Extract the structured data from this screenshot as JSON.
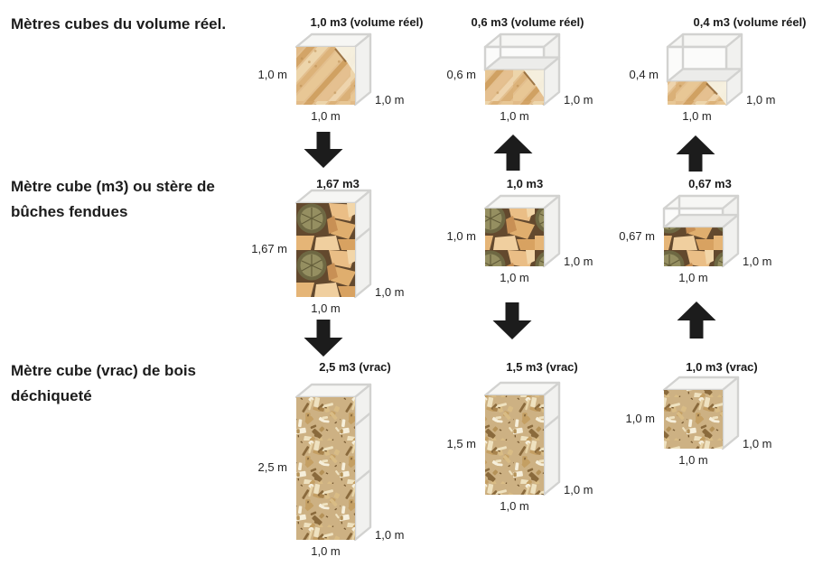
{
  "figure": {
    "background": "#ffffff"
  },
  "colors": {
    "text": "#1c1c1c",
    "arrow": "#1c1c1c",
    "wireframe": "#d2d2d0",
    "face_top": "#f6f6f4",
    "face_right": "#f1f1ef",
    "face_empty_front": "#fbfbfa",
    "face_fill_top": "#ececea",
    "grain_base": "#e3bf8e",
    "logs_background": "#63492e",
    "chips_background": "#cdb183"
  },
  "row_labels": [
    {
      "text": "Mètres cubes du volume réel."
    },
    {
      "text": "Mètre cube (m3) ou stère de\nbûches fendues"
    },
    {
      "text": "Mètre cube (vrac) de bois\ndéchiqueté"
    }
  ],
  "cells": [
    {
      "id": "volume-reel-10",
      "title": "1,0 m3 (volume réel)",
      "texture": "grain",
      "height_m": 1.0,
      "fill_m": 1.0,
      "left_label": "1,0 m",
      "right_label": "1,0 m",
      "bottom_label": "1,0 m"
    },
    {
      "id": "volume-reel-06",
      "title": "0,6 m3 (volume réel)",
      "texture": "grain",
      "height_m": 1.0,
      "fill_m": 0.6,
      "left_label": "0,6 m",
      "right_label": "1,0 m",
      "bottom_label": "1,0 m"
    },
    {
      "id": "volume-reel-04",
      "title": "0,4 m3 (volume réel)",
      "texture": "grain",
      "height_m": 1.0,
      "fill_m": 0.4,
      "left_label": "0,4 m",
      "right_label": "1,0 m",
      "bottom_label": "1,0 m"
    },
    {
      "id": "stere-167",
      "title": "1,67 m3",
      "texture": "logs",
      "height_m": 1.67,
      "fill_m": 1.67,
      "left_label": "1,67 m",
      "right_label": "1,0 m",
      "bottom_label": "1,0 m"
    },
    {
      "id": "stere-10",
      "title": "1,0 m3",
      "texture": "logs",
      "height_m": 1.0,
      "fill_m": 1.0,
      "left_label": "1,0 m",
      "right_label": "1,0 m",
      "bottom_label": "1,0 m"
    },
    {
      "id": "stere-067",
      "title": "0,67 m3",
      "texture": "logs",
      "height_m": 1.0,
      "fill_m": 0.67,
      "left_label": "0,67 m",
      "right_label": "1,0 m",
      "bottom_label": "1,0 m"
    },
    {
      "id": "vrac-25",
      "title": "2,5 m3 (vrac)",
      "texture": "chips",
      "height_m": 2.5,
      "fill_m": 2.5,
      "left_label": "2,5 m",
      "right_label": "1,0 m",
      "bottom_label": "1,0 m"
    },
    {
      "id": "vrac-15",
      "title": "1,5 m3 (vrac)",
      "texture": "chips",
      "height_m": 1.5,
      "fill_m": 1.5,
      "left_label": "1,5 m",
      "right_label": "1,0 m",
      "bottom_label": "1,0 m"
    },
    {
      "id": "vrac-10",
      "title": "1,0 m3 (vrac)",
      "texture": "chips",
      "height_m": 1.0,
      "fill_m": 1.0,
      "left_label": "1,0 m",
      "right_label": "1,0 m",
      "bottom_label": "1,0 m"
    }
  ],
  "arrows": [
    {
      "id": "arrow-reel10-to-stere167",
      "direction": "down"
    },
    {
      "id": "arrow-stere10-to-reel06",
      "direction": "up"
    },
    {
      "id": "arrow-stere067-to-reel04",
      "direction": "up"
    },
    {
      "id": "arrow-stere167-to-vrac25",
      "direction": "down"
    },
    {
      "id": "arrow-stere10-to-vrac15",
      "direction": "down"
    },
    {
      "id": "arrow-vrac10-to-stere067",
      "direction": "up"
    }
  ]
}
